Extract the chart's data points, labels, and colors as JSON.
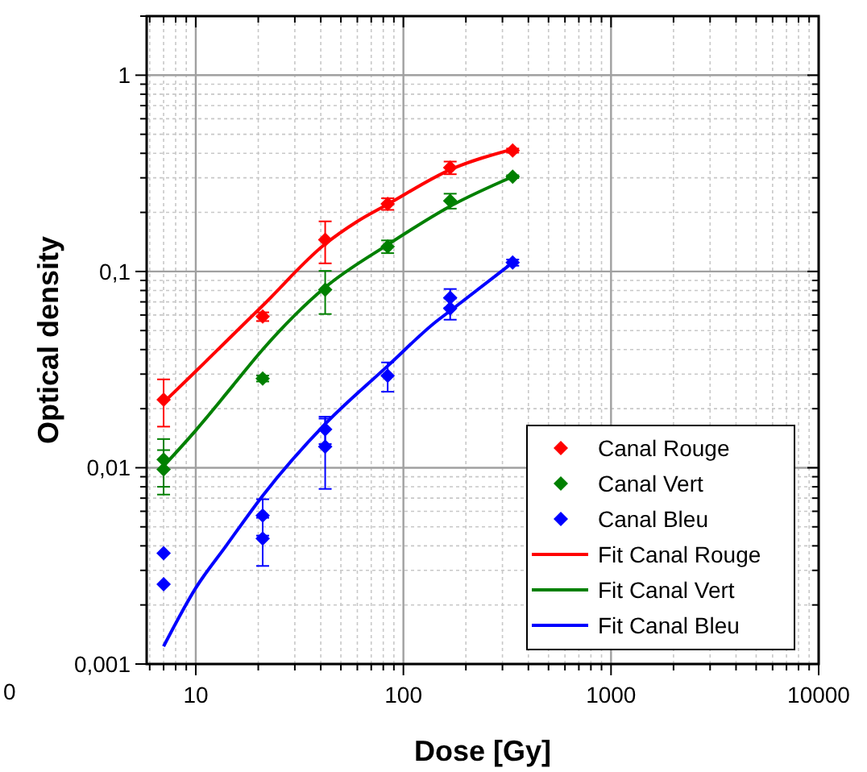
{
  "chart_data": {
    "type": "scatter",
    "xlabel": "Dose [Gy]",
    "ylabel": "Optical density",
    "log": "xy",
    "grid": true,
    "legend": "bottom right",
    "xlim": [
      5.8,
      10000
    ],
    "ylim": [
      0.001,
      2
    ],
    "xticks": [
      10,
      100,
      1000,
      10000
    ],
    "yticks": [
      {
        "value": 0.001,
        "label": "0,001"
      },
      {
        "value": 0.01,
        "label": "0,01"
      },
      {
        "value": 0.1,
        "label": "0,1"
      },
      {
        "value": 1,
        "label": "1"
      }
    ],
    "annotations": [
      "0"
    ],
    "series": [
      {
        "name": "Canal Rouge",
        "marker": "diamond",
        "color": "#ff0000",
        "x": [
          7,
          21,
          42,
          84,
          168,
          336
        ],
        "values": [
          0.0222,
          0.0589,
          0.145,
          0.221,
          0.338,
          0.413
        ],
        "errors": [
          0.006,
          0.003,
          0.035,
          0.015,
          0.025,
          0.01
        ]
      },
      {
        "name": "Canal Vert",
        "marker": "diamond",
        "color": "#008000",
        "x": [
          7,
          7,
          21,
          42,
          84,
          168,
          336
        ],
        "values": [
          0.011,
          0.0098,
          0.0285,
          0.0807,
          0.134,
          0.229,
          0.304
        ],
        "errors": [
          0.003,
          0.0025,
          0.001,
          0.02,
          0.01,
          0.02,
          0.005
        ]
      },
      {
        "name": "Canal Bleu",
        "marker": "diamond",
        "color": "#0000ff",
        "x": [
          7,
          7,
          21,
          21,
          42,
          42,
          84,
          168,
          168,
          336
        ],
        "values": [
          0.00367,
          0.00255,
          0.00571,
          0.00436,
          0.0157,
          0.0128,
          0.0294,
          0.0734,
          0.0648,
          0.111
        ],
        "errors": [
          null,
          null,
          0.0012,
          0.0012,
          0.0025,
          0.005,
          0.005,
          0.008,
          0.008,
          0.004
        ]
      },
      {
        "name": "Fit Canal Rouge",
        "type": "line",
        "marker": "none",
        "line_style": "solid",
        "color": "#ff0000",
        "x": [
          7,
          10,
          14,
          21,
          42,
          60,
          84,
          168,
          336
        ],
        "values": [
          0.0215,
          0.031,
          0.044,
          0.067,
          0.138,
          0.18,
          0.22,
          0.33,
          0.42
        ]
      },
      {
        "name": "Fit Canal Vert",
        "type": "line",
        "marker": "none",
        "line_style": "solid",
        "color": "#008000",
        "x": [
          7,
          10,
          15,
          21,
          42,
          84,
          168,
          336
        ],
        "values": [
          0.0102,
          0.0155,
          0.026,
          0.04,
          0.083,
          0.137,
          0.215,
          0.304
        ]
      },
      {
        "name": "Fit Canal Bleu",
        "type": "line",
        "marker": "none",
        "line_style": "solid",
        "color": "#0000ff",
        "x": [
          7,
          10,
          14,
          21,
          42,
          84,
          143,
          168,
          336
        ],
        "values": [
          0.00123,
          0.00244,
          0.004,
          0.0072,
          0.0167,
          0.033,
          0.0553,
          0.063,
          0.111
        ]
      }
    ]
  }
}
